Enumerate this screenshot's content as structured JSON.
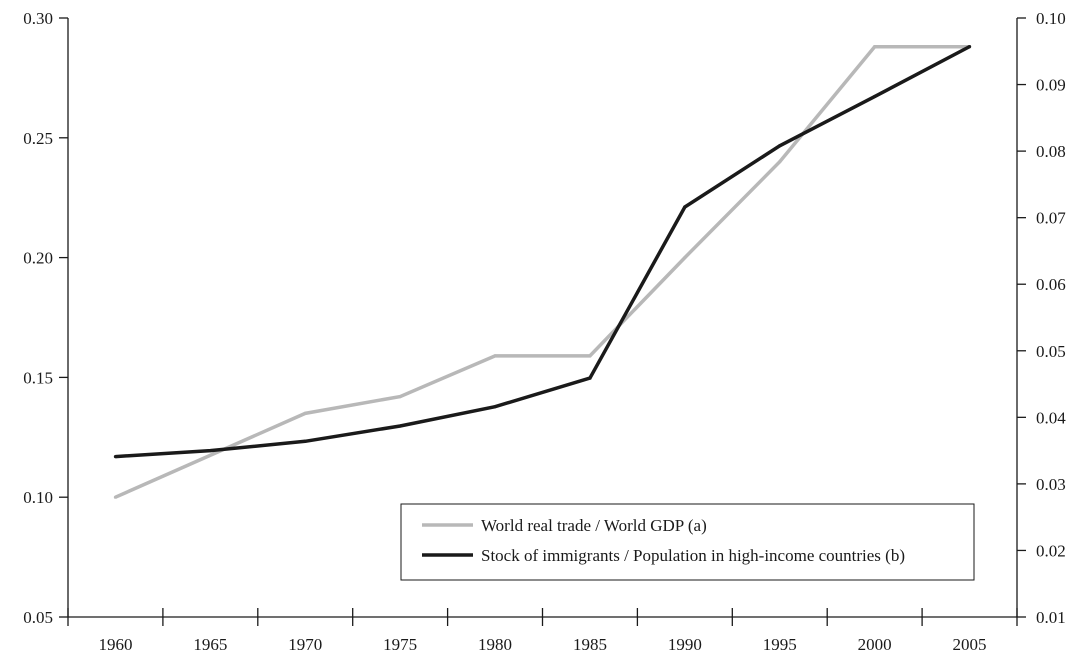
{
  "chart_data": {
    "type": "line",
    "title": "",
    "xlabel": "",
    "ylabel": "",
    "x": [
      1960,
      1965,
      1970,
      1975,
      1980,
      1985,
      1990,
      1995,
      2000,
      2005
    ],
    "x_tick_labels": [
      "1960",
      "1965",
      "1970",
      "1975",
      "1980",
      "1985",
      "1990",
      "1995",
      "2000",
      "2005"
    ],
    "xlim": [
      1957.5,
      2007.5
    ],
    "ylim_left": [
      0.05,
      0.3
    ],
    "y_left_tick_labels": [
      "0.05",
      "0.10",
      "0.15",
      "0.20",
      "0.25",
      "0.30"
    ],
    "y_left_ticks": [
      0.05,
      0.1,
      0.15,
      0.2,
      0.25,
      0.3
    ],
    "ylim_right": [
      0.01,
      0.1
    ],
    "y_right_tick_labels": [
      "0.01",
      "0.02",
      "0.03",
      "0.04",
      "0.05",
      "0.06",
      "0.07",
      "0.08",
      "0.09",
      "0.10"
    ],
    "y_right_ticks": [
      0.01,
      0.02,
      0.03,
      0.04,
      0.05,
      0.06,
      0.07,
      0.08,
      0.09,
      0.1
    ],
    "grid": false,
    "legend_position": "bottom-right",
    "series": [
      {
        "name": "World real trade / World GDP (a)",
        "axis": "left",
        "color": "#b8b8b8",
        "x": [
          1960,
          1970,
          1975,
          1980,
          1985,
          1990,
          1995,
          2000,
          2005
        ],
        "values": [
          0.1,
          0.135,
          0.142,
          0.159,
          0.159,
          0.2,
          0.24,
          0.288,
          0.288
        ]
      },
      {
        "name": "Stock of immigrants / Population in high-income countries (b)",
        "axis": "right",
        "color": "#1a1a1a",
        "x": [
          1960,
          1965,
          1970,
          1975,
          1980,
          1985,
          1990,
          1995,
          2000,
          2005
        ],
        "values": [
          0.0341,
          0.035,
          0.0364,
          0.0387,
          0.0416,
          0.0459,
          0.0716,
          0.0808,
          0.0882,
          0.0957
        ]
      }
    ]
  }
}
